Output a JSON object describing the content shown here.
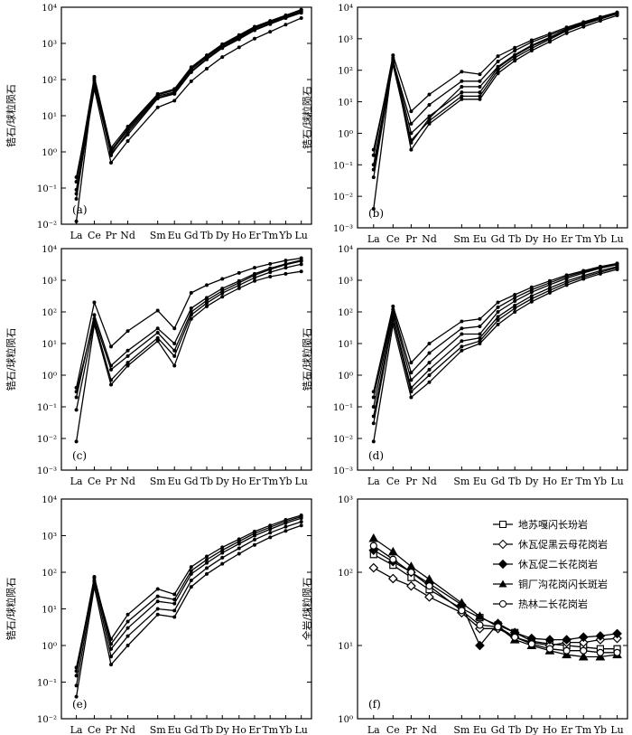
{
  "elements": [
    "La",
    "Ce",
    "Pr",
    "Nd",
    "Sm",
    "Eu",
    "Gd",
    "Tb",
    "Dy",
    "Ho",
    "Er",
    "Tm",
    "Yb",
    "Lu"
  ],
  "zircon_ylabel": "锆石/球粒陨石",
  "wholerock_ylabel": "全岩/球粒陨石",
  "chart_data": [
    {
      "type": "line",
      "panel_label": "(a)",
      "ylabel": "锆石/球粒陨石",
      "yscale": "log",
      "ylim": [
        0.01,
        10000
      ],
      "yticks": [
        "10⁻²",
        "10⁻¹",
        "10⁰",
        "10¹",
        "10²",
        "10³",
        "10⁴"
      ],
      "series": [
        {
          "values": [
            0.012,
            110,
            1.0,
            4.0,
            35,
            45,
            190,
            420,
            850,
            1500,
            2600,
            3900,
            5600,
            8000
          ]
        },
        {
          "values": [
            0.05,
            80,
            0.8,
            3.5,
            32,
            42,
            170,
            380,
            780,
            1400,
            2400,
            3600,
            5200,
            7400
          ]
        },
        {
          "values": [
            0.09,
            95,
            1.1,
            4.5,
            38,
            50,
            200,
            440,
            900,
            1600,
            2700,
            4000,
            5800,
            8300
          ]
        },
        {
          "values": [
            0.15,
            120,
            1.3,
            5.0,
            40,
            55,
            220,
            470,
            950,
            1700,
            2900,
            4200,
            6000,
            8600
          ]
        },
        {
          "values": [
            0.2,
            70,
            0.9,
            3.0,
            30,
            40,
            160,
            360,
            740,
            1300,
            2300,
            3400,
            5000,
            7000
          ]
        },
        {
          "values": [
            0.07,
            55,
            0.5,
            2.0,
            17,
            26,
            90,
            200,
            420,
            780,
            1350,
            2100,
            3300,
            5000
          ]
        }
      ]
    },
    {
      "type": "line",
      "panel_label": "(b)",
      "ylabel": "锆石/球粒陨石",
      "yscale": "log",
      "ylim": [
        0.001,
        10000
      ],
      "yticks": [
        "10⁻³",
        "10⁻²",
        "10⁻¹",
        "10⁰",
        "10¹",
        "10²",
        "10³",
        "10⁴"
      ],
      "series": [
        {
          "values": [
            0.004,
            250,
            0.3,
            2.0,
            12,
            12,
            80,
            200,
            420,
            800,
            1500,
            2400,
            3700,
            5500
          ]
        },
        {
          "values": [
            0.04,
            180,
            0.6,
            2.5,
            15,
            15,
            100,
            250,
            500,
            950,
            1800,
            2800,
            4200,
            6200
          ]
        },
        {
          "values": [
            0.1,
            220,
            1.0,
            3.5,
            20,
            20,
            120,
            290,
            580,
            1050,
            1900,
            3000,
            4500,
            6500
          ]
        },
        {
          "values": [
            0.2,
            300,
            5.0,
            17,
            90,
            75,
            280,
            520,
            900,
            1450,
            2300,
            3400,
            4900,
            6900
          ]
        },
        {
          "values": [
            0.3,
            200,
            2.0,
            8.0,
            45,
            45,
            190,
            420,
            780,
            1300,
            2100,
            3200,
            4700,
            6600
          ]
        },
        {
          "values": [
            0.07,
            150,
            0.5,
            3.0,
            30,
            30,
            130,
            310,
            620,
            1100,
            1950,
            3000,
            4400,
            6300
          ]
        }
      ]
    },
    {
      "type": "line",
      "panel_label": "(c)",
      "ylabel": "锆石/球粒陨石",
      "yscale": "log",
      "ylim": [
        0.001,
        10000
      ],
      "yticks": [
        "10⁻³",
        "10⁻²",
        "10⁻¹",
        "10⁰",
        "10¹",
        "10²",
        "10³",
        "10⁴"
      ],
      "series": [
        {
          "values": [
            0.008,
            40,
            0.5,
            2.0,
            12,
            2.0,
            60,
            150,
            300,
            560,
            950,
            1300,
            1600,
            1900
          ]
        },
        {
          "values": [
            0.08,
            50,
            0.7,
            2.5,
            15,
            4.0,
            80,
            190,
            390,
            700,
            1200,
            1800,
            2500,
            3200
          ]
        },
        {
          "values": [
            0.3,
            60,
            1.5,
            4.0,
            22,
            6.0,
            100,
            230,
            460,
            830,
            1450,
            2200,
            3100,
            4000
          ]
        },
        {
          "values": [
            0.4,
            200,
            8.0,
            25,
            110,
            30,
            400,
            700,
            1100,
            1700,
            2500,
            3300,
            4200,
            5000
          ]
        },
        {
          "values": [
            0.2,
            80,
            2.0,
            6.0,
            30,
            10,
            130,
            280,
            550,
            950,
            1600,
            2400,
            3300,
            4300
          ]
        }
      ]
    },
    {
      "type": "line",
      "panel_label": "(d)",
      "ylabel": "锆石/球粒陨石",
      "yscale": "log",
      "ylim": [
        0.001,
        10000
      ],
      "yticks": [
        "10⁻³",
        "10⁻²",
        "10⁻¹",
        "10⁰",
        "10¹",
        "10²",
        "10³",
        "10⁴"
      ],
      "series": [
        {
          "values": [
            0.008,
            40,
            0.2,
            0.6,
            6,
            10,
            40,
            100,
            210,
            400,
            700,
            1100,
            1600,
            2200
          ]
        },
        {
          "values": [
            0.05,
            70,
            0.4,
            1.5,
            12,
            15,
            70,
            160,
            320,
            570,
            950,
            1400,
            2000,
            2700
          ]
        },
        {
          "values": [
            0.1,
            100,
            0.7,
            2.5,
            20,
            20,
            100,
            220,
            420,
            720,
            1150,
            1700,
            2400,
            3100
          ]
        },
        {
          "values": [
            0.3,
            150,
            2.5,
            10,
            50,
            60,
            200,
            350,
            600,
            950,
            1450,
            2000,
            2700,
            3400
          ]
        },
        {
          "values": [
            0.2,
            120,
            1.2,
            5.0,
            30,
            35,
            140,
            280,
            500,
            830,
            1300,
            1850,
            2550,
            3300
          ]
        },
        {
          "values": [
            0.03,
            60,
            0.3,
            1.0,
            8,
            12,
            55,
            130,
            260,
            480,
            820,
            1250,
            1800,
            2500
          ]
        }
      ]
    },
    {
      "type": "line",
      "panel_label": "(e)",
      "ylabel": "锆石/球粒陨石",
      "yscale": "log",
      "ylim": [
        0.01,
        10000
      ],
      "yticks": [
        "10⁻²",
        "10⁻¹",
        "10⁰",
        "10¹",
        "10²",
        "10³",
        "10⁴"
      ],
      "series": [
        {
          "values": [
            0.04,
            40,
            0.3,
            1.0,
            7,
            6,
            40,
            90,
            170,
            320,
            560,
            900,
            1350,
            1900
          ]
        },
        {
          "values": [
            0.08,
            55,
            0.5,
            1.8,
            10,
            9,
            60,
            130,
            250,
            450,
            780,
            1200,
            1750,
            2400
          ]
        },
        {
          "values": [
            0.15,
            70,
            0.8,
            3.0,
            16,
            14,
            90,
            180,
            340,
            600,
            1000,
            1500,
            2200,
            3000
          ]
        },
        {
          "values": [
            0.25,
            60,
            1.5,
            7.0,
            35,
            25,
            140,
            270,
            480,
            800,
            1300,
            1900,
            2700,
            3600
          ]
        },
        {
          "values": [
            0.2,
            75,
            1.1,
            4.5,
            22,
            18,
            110,
            220,
            400,
            700,
            1150,
            1700,
            2450,
            3300
          ]
        }
      ]
    },
    {
      "type": "line",
      "panel_label": "(f)",
      "ylabel": "全岩/球粒陨石",
      "yscale": "log",
      "ylim": [
        1,
        1000
      ],
      "yticks": [
        "10⁰",
        "10¹",
        "10²",
        "10³"
      ],
      "legend_position": "top-right",
      "series": [
        {
          "name": "地苏嘎闪长玢岩",
          "marker": "square-open",
          "values": [
            175,
            125,
            85,
            58,
            32,
            24,
            19,
            15,
            11.5,
            10.5,
            10,
            9.5,
            9,
            9
          ]
        },
        {
          "name": "休瓦促黑云母花岗岩",
          "marker": "diamond-open",
          "values": [
            115,
            82,
            65,
            46,
            28,
            17,
            17,
            13,
            11,
            10,
            11,
            11,
            12,
            12.5
          ]
        },
        {
          "name": "休瓦促二长花岗岩",
          "marker": "diamond-filled",
          "values": [
            200,
            140,
            100,
            70,
            36,
            10,
            20,
            15,
            12.5,
            12,
            12,
            13,
            13.5,
            14.5
          ]
        },
        {
          "name": "铜厂沟花岗闪长斑岩",
          "marker": "triangle-filled",
          "values": [
            290,
            190,
            120,
            80,
            38,
            25,
            18,
            12,
            10,
            8.5,
            7.5,
            7,
            7,
            7.5
          ]
        },
        {
          "name": "热林二长花岗岩",
          "marker": "circle-open",
          "values": [
            230,
            150,
            100,
            65,
            30,
            19,
            18,
            13,
            10.5,
            9,
            8.5,
            8.5,
            8,
            8
          ]
        }
      ]
    }
  ]
}
